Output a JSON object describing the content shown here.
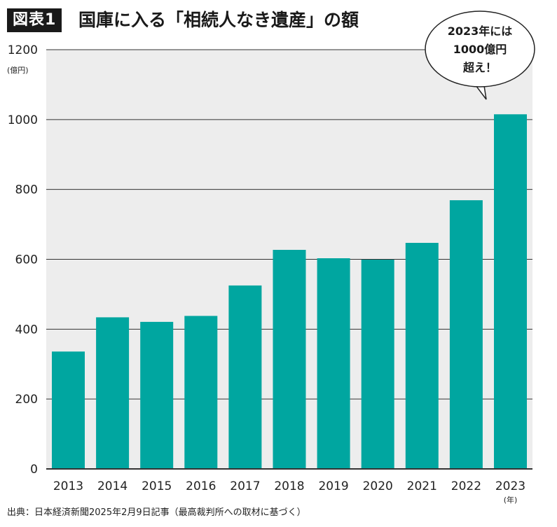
{
  "header": {
    "badge": "図表1",
    "title": "国庫に入る「相続人なき遺産」の額"
  },
  "callout": {
    "lines": [
      "2023年には",
      "1000億円",
      "超え！"
    ]
  },
  "colors": {
    "bar": "#00a6a0",
    "plot_bg": "#ededed",
    "grid": "#333333",
    "text": "#222222"
  },
  "footer": {
    "source": "出典：日本経済新聞2025年2月9日記事（最高裁判所への取材に基づく）"
  },
  "chart_data": {
    "type": "bar",
    "title": "国庫に入る「相続人なき遺産」の額",
    "ylabel": "(億円)",
    "xlabel": "(年)",
    "categories": [
      "2013",
      "2014",
      "2015",
      "2016",
      "2017",
      "2018",
      "2019",
      "2020",
      "2021",
      "2022",
      "2023"
    ],
    "values": [
      336,
      434,
      421,
      438,
      525,
      627,
      603,
      599,
      647,
      769,
      1015
    ],
    "ylim": [
      0,
      1200
    ],
    "yticks": [
      0,
      200,
      400,
      600,
      800,
      1000,
      1200
    ],
    "grid": true,
    "legend": "none"
  }
}
